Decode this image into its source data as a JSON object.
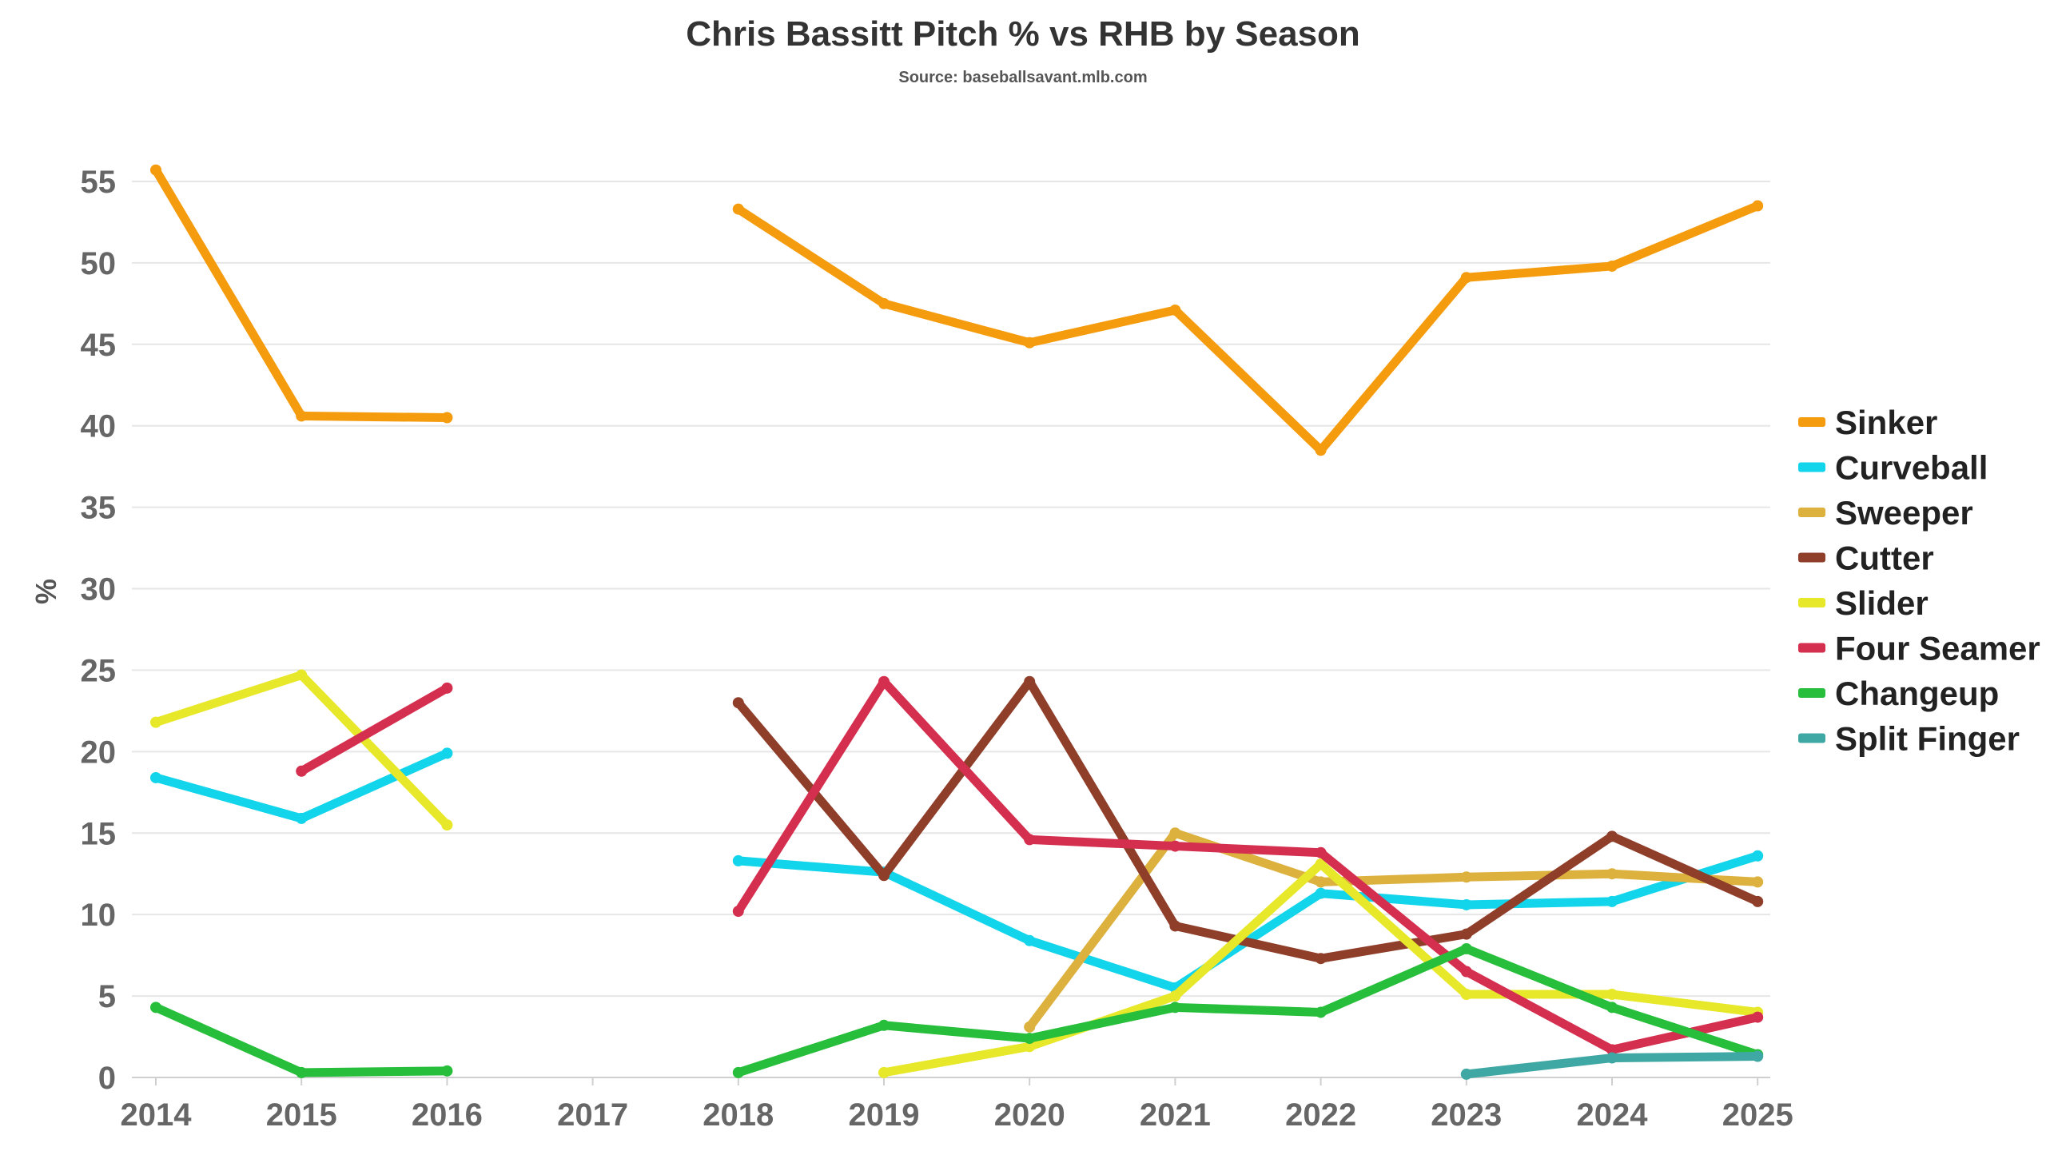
{
  "chart_data": {
    "type": "line",
    "title": "Chris Bassitt Pitch % vs RHB by Season",
    "subtitle": "Source: baseballsavant.mlb.com",
    "xlabel": "",
    "ylabel": "%",
    "categories": [
      "2014",
      "2015",
      "2016",
      "2017",
      "2018",
      "2019",
      "2020",
      "2021",
      "2022",
      "2023",
      "2024",
      "2025"
    ],
    "ylim": [
      0,
      55
    ],
    "yticks": [
      0,
      5,
      10,
      15,
      20,
      25,
      30,
      35,
      40,
      45,
      50,
      55
    ],
    "grid": true,
    "legend_position": "right",
    "series": [
      {
        "name": "Sinker",
        "color": "#F59C0E",
        "values": [
          55.7,
          40.6,
          40.5,
          null,
          53.3,
          47.5,
          45.1,
          47.1,
          38.5,
          49.1,
          49.8,
          53.5
        ]
      },
      {
        "name": "Curveball",
        "color": "#12D4EA",
        "values": [
          18.4,
          15.9,
          19.9,
          null,
          13.3,
          12.6,
          8.4,
          5.5,
          11.3,
          10.6,
          10.8,
          13.6
        ]
      },
      {
        "name": "Sweeper",
        "color": "#DCB13E",
        "values": [
          null,
          null,
          null,
          null,
          null,
          null,
          3.1,
          15.0,
          12.0,
          12.3,
          12.5,
          12.0
        ]
      },
      {
        "name": "Cutter",
        "color": "#8F3E2A",
        "values": [
          null,
          null,
          null,
          null,
          23.0,
          12.4,
          24.3,
          9.3,
          7.3,
          8.8,
          14.8,
          10.8
        ]
      },
      {
        "name": "Slider",
        "color": "#E8E82A",
        "values": [
          21.8,
          24.7,
          15.5,
          null,
          null,
          0.3,
          1.9,
          5.0,
          13.1,
          5.1,
          5.1,
          4.0
        ]
      },
      {
        "name": "Four Seamer",
        "color": "#D52F4F",
        "values": [
          null,
          18.8,
          23.9,
          null,
          10.2,
          24.3,
          14.6,
          14.2,
          13.8,
          6.5,
          1.7,
          3.7
        ]
      },
      {
        "name": "Changeup",
        "color": "#27BE3B",
        "values": [
          4.3,
          0.3,
          0.4,
          null,
          0.3,
          3.2,
          2.4,
          4.3,
          4.0,
          7.9,
          4.3,
          1.4
        ]
      },
      {
        "name": "Split Finger",
        "color": "#3FA8A4",
        "values": [
          null,
          null,
          null,
          null,
          null,
          null,
          null,
          null,
          null,
          0.2,
          1.2,
          1.3
        ]
      }
    ]
  }
}
